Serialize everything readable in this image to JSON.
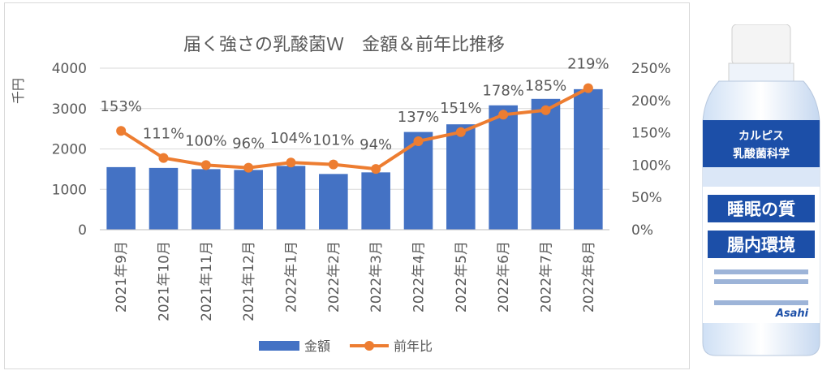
{
  "chart_data": {
    "type": "bar+line",
    "title": "届く強さの乳酸菌Ｗ　金額＆前年比推移",
    "ylabel_left": "千円",
    "ylim_left": [
      0,
      4000
    ],
    "yticks_left": [
      "0",
      "1000",
      "2000",
      "3000",
      "4000"
    ],
    "ylim_right": [
      0,
      250
    ],
    "yticks_right": [
      "0%",
      "50%",
      "100%",
      "150%",
      "200%",
      "250%"
    ],
    "categories": [
      "2021年9月",
      "2021年10月",
      "2021年11月",
      "2021年12月",
      "2022年1月",
      "2022年2月",
      "2022年3月",
      "2022年4月",
      "2022年5月",
      "2022年6月",
      "2022年7月",
      "2022年8月"
    ],
    "series": [
      {
        "name": "金額",
        "type": "bar",
        "axis": "left",
        "color": "#4472c4",
        "values": [
          1550,
          1530,
          1500,
          1480,
          1580,
          1380,
          1420,
          2420,
          2610,
          3080,
          3240,
          3480
        ]
      },
      {
        "name": "前年比",
        "type": "line",
        "axis": "right",
        "color": "#ed7d31",
        "values": [
          153,
          111,
          100,
          96,
          104,
          101,
          94,
          137,
          151,
          178,
          185,
          219
        ],
        "labels": [
          "153%",
          "111%",
          "100%",
          "96%",
          "104%",
          "101%",
          "94%",
          "137%",
          "151%",
          "178%",
          "185%",
          "219%"
        ]
      }
    ],
    "legend": [
      "金額",
      "前年比"
    ],
    "legend_position": "bottom",
    "grid": true
  },
  "product": {
    "brand": "カルピス",
    "lab": "乳酸菌科学",
    "line1": "睡眠の質",
    "line2": "腸内環境",
    "maker": "Asahi",
    "colors": {
      "blue": "#1c4fa8",
      "light": "#e8f0fb",
      "cap": "#f2f2f2"
    }
  }
}
